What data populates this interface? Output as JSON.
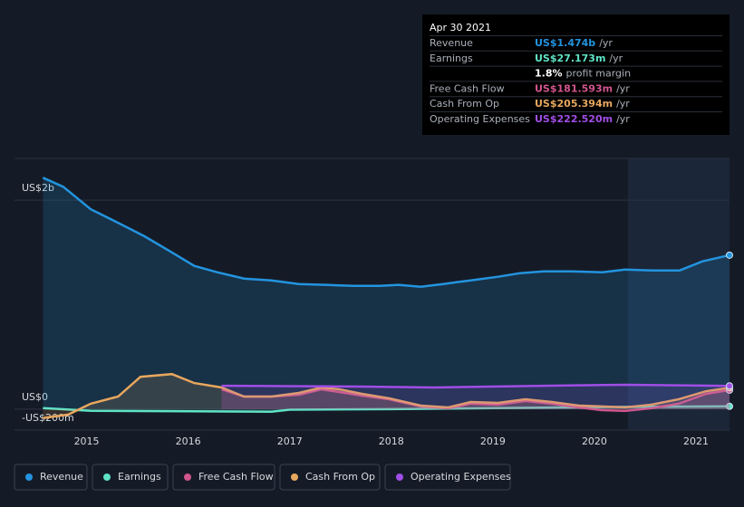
{
  "chart_data": {
    "type": "line",
    "xlim": [
      2014.29,
      2021.33
    ],
    "xticks": [
      2015,
      2016,
      2017,
      2018,
      2019,
      2020,
      2021
    ],
    "ylim": [
      -200,
      2400
    ],
    "yticks": [
      {
        "value": 2000,
        "label": "US$2b"
      },
      {
        "value": 0,
        "label": "US$0"
      },
      {
        "value": -200,
        "label": "-US$200m"
      }
    ],
    "grid": true,
    "highlight_from": 2020.33,
    "series": [
      {
        "name": "Revenue",
        "color": "#2394df",
        "x": [
          2014.57,
          2014.77,
          2015.04,
          2015.31,
          2015.57,
          2015.84,
          2016.06,
          2016.29,
          2016.55,
          2016.82,
          2017.09,
          2017.35,
          2017.62,
          2017.89,
          2018.07,
          2018.29,
          2018.51,
          2018.78,
          2019.05,
          2019.27,
          2019.5,
          2019.76,
          2020.08,
          2020.3,
          2020.57,
          2020.84,
          2021.06,
          2021.33
        ],
        "values": [
          2215,
          2129,
          1914,
          1784,
          1655,
          1500,
          1371,
          1310,
          1250,
          1233,
          1198,
          1190,
          1181,
          1181,
          1190,
          1172,
          1198,
          1233,
          1267,
          1302,
          1319,
          1319,
          1310,
          1336,
          1328,
          1328,
          1414,
          1474
        ]
      },
      {
        "name": "Earnings",
        "color": "#5fe3c7",
        "x": [
          2014.57,
          2015.04,
          2016.0,
          2016.82,
          2017.0,
          2018.0,
          2019.0,
          2020.0,
          2021.33
        ],
        "values": [
          10,
          -15,
          -20,
          -25,
          -5,
          0,
          10,
          20,
          27
        ]
      },
      {
        "name": "Free Cash Flow",
        "color": "#d2558d",
        "x": [
          2016.33,
          2016.55,
          2016.82,
          2017.09,
          2017.31,
          2017.49,
          2017.71,
          2017.98,
          2018.29,
          2018.56,
          2018.78,
          2019.05,
          2019.32,
          2019.58,
          2019.85,
          2020.07,
          2020.3,
          2020.56,
          2020.83,
          2021.1,
          2021.33
        ],
        "values": [
          190,
          121,
          121,
          138,
          190,
          164,
          129,
          95,
          26,
          9,
          52,
          43,
          78,
          52,
          17,
          -9,
          -17,
          9,
          52,
          147,
          182
        ]
      },
      {
        "name": "Cash From Op",
        "color": "#e8a75e",
        "x": [
          2014.57,
          2014.82,
          2015.04,
          2015.31,
          2015.53,
          2015.84,
          2016.06,
          2016.33,
          2016.55,
          2016.82,
          2017.09,
          2017.31,
          2017.49,
          2017.71,
          2017.98,
          2018.29,
          2018.56,
          2018.78,
          2019.05,
          2019.32,
          2019.58,
          2019.85,
          2020.07,
          2020.3,
          2020.56,
          2020.83,
          2021.1,
          2021.33
        ],
        "values": [
          -86,
          -52,
          52,
          121,
          310,
          336,
          250,
          207,
          121,
          121,
          155,
          207,
          190,
          147,
          103,
          34,
          17,
          69,
          60,
          95,
          69,
          34,
          26,
          17,
          43,
          95,
          172,
          205
        ]
      },
      {
        "name": "Operating Expenses",
        "color": "#a04ee6",
        "x": [
          2016.33,
          2017.71,
          2018.42,
          2019.5,
          2020.3,
          2021.33
        ],
        "values": [
          224,
          216,
          207,
          224,
          233,
          223
        ]
      }
    ]
  },
  "tooltip": {
    "date": "Apr 30 2021",
    "rows": [
      {
        "label": "Revenue",
        "value": "US$1.474b",
        "suffix": "/yr",
        "color": "#2394df"
      },
      {
        "label": "Earnings",
        "value": "US$27.173m",
        "suffix": "/yr",
        "color": "#5fe3c7"
      },
      {
        "label": "",
        "value": "1.8%",
        "suffix": "profit margin",
        "color": "#ffffff"
      },
      {
        "label": "Free Cash Flow",
        "value": "US$181.593m",
        "suffix": "/yr",
        "color": "#d2558d"
      },
      {
        "label": "Cash From Op",
        "value": "US$205.394m",
        "suffix": "/yr",
        "color": "#e8a75e"
      },
      {
        "label": "Operating Expenses",
        "value": "US$222.520m",
        "suffix": "/yr",
        "color": "#a04ee6"
      }
    ]
  }
}
